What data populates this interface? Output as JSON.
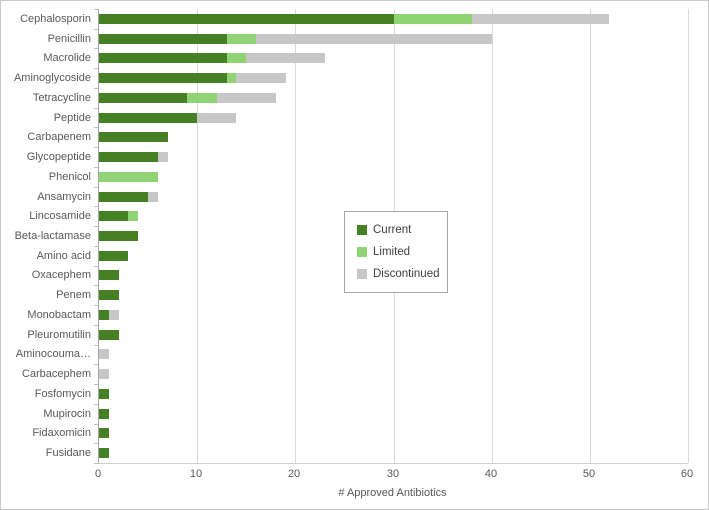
{
  "chart_data": {
    "type": "bar",
    "orientation": "horizontal",
    "stacked": true,
    "title": "",
    "xlabel": "# Approved Antibiotics",
    "ylabel": "",
    "xlim": [
      0,
      60
    ],
    "xticks": [
      0,
      10,
      20,
      30,
      40,
      50,
      60
    ],
    "grid": "vertical",
    "legend_position": "center-of-plot",
    "legend_entries": [
      "Current",
      "Limited",
      "Discontinued"
    ],
    "categories": [
      "Cephalosporin",
      "Penicillin",
      "Macrolide",
      "Aminoglycoside",
      "Tetracycline",
      "Peptide",
      "Carbapenem",
      "Glycopeptide",
      "Phenicol",
      "Ansamycin",
      "Lincosamide",
      "Beta-lactamase",
      "Amino acid",
      "Oxacephem",
      "Penem",
      "Monobactam",
      "Pleuromutilin",
      "Aminocouma…",
      "Carbacephem",
      "Fosfomycin",
      "Mupirocin",
      "Fidaxomicin",
      "Fusidane"
    ],
    "series": [
      {
        "name": "Current",
        "color": "#467f24",
        "values": [
          30,
          13,
          13,
          13,
          9,
          10,
          7,
          6,
          0,
          5,
          3,
          4,
          3,
          2,
          2,
          1,
          2,
          0,
          0,
          1,
          1,
          1,
          1
        ]
      },
      {
        "name": "Limited",
        "color": "#90d374",
        "values": [
          8,
          3,
          2,
          1,
          3,
          0,
          0,
          0,
          6,
          0,
          1,
          0,
          0,
          0,
          0,
          0,
          0,
          0,
          0,
          0,
          0,
          0,
          0
        ]
      },
      {
        "name": "Discontinued",
        "color": "#c7c7c7",
        "values": [
          14,
          24,
          8,
          5,
          6,
          4,
          0,
          1,
          0,
          1,
          0,
          0,
          0,
          0,
          0,
          1,
          0,
          1,
          1,
          0,
          0,
          0,
          0
        ]
      }
    ],
    "colors": {
      "gridline": "#d9d9d9",
      "axis_line": "#a6a6a6",
      "text": "#595959"
    }
  }
}
